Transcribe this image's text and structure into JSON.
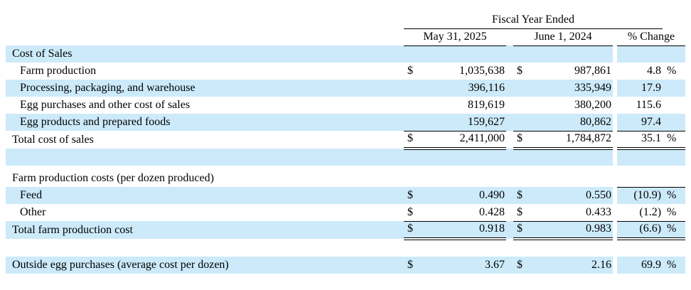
{
  "colors": {
    "row_shade": "#cceafa",
    "rule": "#000000",
    "text": "#000000",
    "background": "#ffffff"
  },
  "table": {
    "title_group": "Fiscal Year Ended",
    "columns": {
      "col1": "May 31, 2025",
      "col2": "June 1, 2024",
      "col3": "% Change"
    },
    "rows": [
      {
        "type": "section",
        "label": "Cost of Sales",
        "indent": false,
        "shaded": true
      },
      {
        "type": "data",
        "label": "Farm production",
        "indent": true,
        "shaded": false,
        "d1": "$",
        "v1": "1,035,638",
        "d2": "$",
        "v2": "987,861",
        "chg": "4.8",
        "pct": "%",
        "border": "none"
      },
      {
        "type": "data",
        "label": "Processing, packaging, and warehouse",
        "indent": true,
        "shaded": true,
        "d1": "",
        "v1": "396,116",
        "d2": "",
        "v2": "335,949",
        "chg": "17.9",
        "pct": "",
        "border": "none"
      },
      {
        "type": "data",
        "label": "Egg purchases and other cost of sales",
        "indent": true,
        "shaded": false,
        "d1": "",
        "v1": "819,619",
        "d2": "",
        "v2": "380,200",
        "chg": "115.6",
        "pct": "",
        "border": "none"
      },
      {
        "type": "data",
        "label": "Egg products and prepared foods",
        "indent": true,
        "shaded": true,
        "d1": "",
        "v1": "159,627",
        "d2": "",
        "v2": "80,862",
        "chg": "97.4",
        "pct": "",
        "border": "single"
      },
      {
        "type": "data",
        "label": "Total cost of sales",
        "indent": false,
        "shaded": false,
        "d1": "$",
        "v1": "2,411,000",
        "d2": "$",
        "v2": "1,784,872",
        "chg": "35.1",
        "pct": "%",
        "border": "double"
      },
      {
        "type": "blank",
        "label": "",
        "shaded": true
      },
      {
        "type": "spacer_small"
      },
      {
        "type": "section",
        "label": "Farm production costs (per dozen produced)",
        "indent": false,
        "shaded": false,
        "pct_rule": true
      },
      {
        "type": "data",
        "label": "Feed",
        "indent": true,
        "shaded": true,
        "d1": "$",
        "v1": "0.490",
        "d2": "$",
        "v2": "0.550",
        "chg": "(10.9)",
        "pct": "%",
        "border": "none"
      },
      {
        "type": "data",
        "label": "Other",
        "indent": true,
        "shaded": false,
        "d1": "$",
        "v1": "0.428",
        "d2": "$",
        "v2": "0.433",
        "chg": "(1.2)",
        "pct": "%",
        "border": "single"
      },
      {
        "type": "data",
        "label": "Total farm production cost",
        "indent": false,
        "shaded": true,
        "d1": "$",
        "v1": "0.918",
        "d2": "$",
        "v2": "0.983",
        "chg": "(6.6)",
        "pct": "%",
        "border": "double"
      },
      {
        "type": "spacer_large"
      },
      {
        "type": "data",
        "label": "Outside egg purchases (average cost per dozen)",
        "indent": false,
        "shaded": true,
        "d1": "$",
        "v1": "3.67",
        "d2": "$",
        "v2": "2.16",
        "chg": "69.9",
        "pct": "%",
        "border": "none"
      }
    ]
  }
}
